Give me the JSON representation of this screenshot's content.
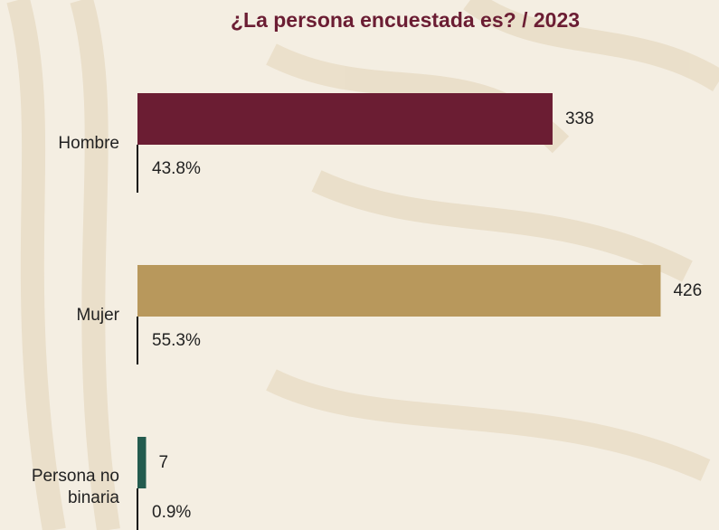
{
  "chart_data": {
    "type": "bar",
    "orientation": "horizontal",
    "title": "¿La persona encuestada es? / 2023",
    "categories": [
      "Hombre",
      "Mujer",
      "Persona no binaria"
    ],
    "values": [
      338,
      426,
      7
    ],
    "share_labels": [
      "43.8%",
      "55.3%",
      "0.9%"
    ],
    "colors": [
      "#6b1d33",
      "#b8985c",
      "#235b4e"
    ],
    "xlim": [
      0,
      475
    ]
  }
}
